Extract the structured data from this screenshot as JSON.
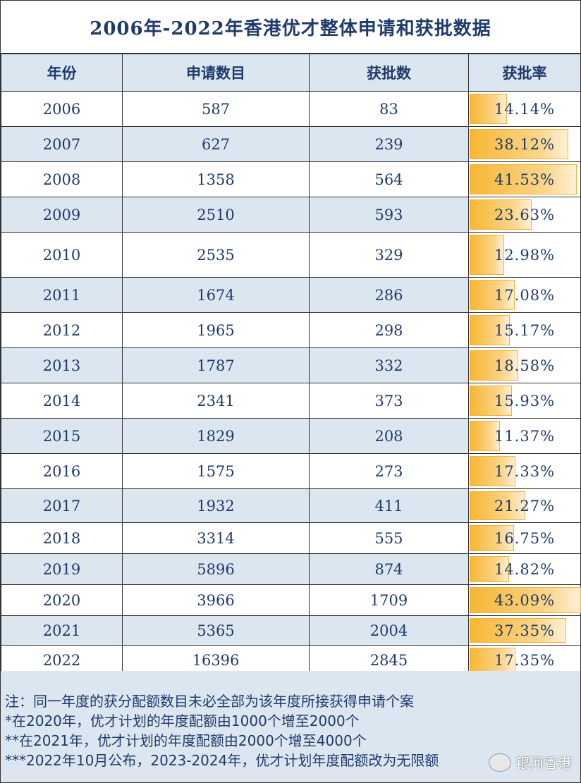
{
  "title": "2006年-2022年香港优才整体申请和获批数据",
  "headers": [
    "年份",
    "申请数目",
    "获批数",
    "获批率"
  ],
  "rows": [
    {
      "year": "2006",
      "apps": "587",
      "approved": "83",
      "rate": "14.14%",
      "rate_value": 14.14
    },
    {
      "year": "2007",
      "apps": "627",
      "approved": "239",
      "rate": "38.12%",
      "rate_value": 38.12
    },
    {
      "year": "2008",
      "apps": "1358",
      "approved": "564",
      "rate": "41.53%",
      "rate_value": 41.53
    },
    {
      "year": "2009",
      "apps": "2510",
      "approved": "593",
      "rate": "23.63%",
      "rate_value": 23.63
    },
    {
      "year": "2010",
      "apps": "2535",
      "approved": "329",
      "rate": "12.98%",
      "rate_value": 12.98
    },
    {
      "year": "2011",
      "apps": "1674",
      "approved": "286",
      "rate": "17.08%",
      "rate_value": 17.08
    },
    {
      "year": "2012",
      "apps": "1965",
      "approved": "298",
      "rate": "15.17%",
      "rate_value": 15.17
    },
    {
      "year": "2013",
      "apps": "1787",
      "approved": "332",
      "rate": "18.58%",
      "rate_value": 18.58
    },
    {
      "year": "2014",
      "apps": "2341",
      "approved": "373",
      "rate": "15.93%",
      "rate_value": 15.93
    },
    {
      "year": "2015",
      "apps": "1829",
      "approved": "208",
      "rate": "11.37%",
      "rate_value": 11.37
    },
    {
      "year": "2016",
      "apps": "1575",
      "approved": "273",
      "rate": "17.33%",
      "rate_value": 17.33
    },
    {
      "year": "2017",
      "apps": "1932",
      "approved": "411",
      "rate": "21.27%",
      "rate_value": 21.27
    },
    {
      "year": "2018",
      "apps": "3314",
      "approved": "555",
      "rate": "16.75%",
      "rate_value": 16.75
    },
    {
      "year": "2019",
      "apps": "5896",
      "approved": "874",
      "rate": "14.82%",
      "rate_value": 14.82
    },
    {
      "year": "2020",
      "apps": "3966",
      "approved": "1709",
      "rate": "43.09%",
      "rate_value": 43.09
    },
    {
      "year": "2021",
      "apps": "5365",
      "approved": "2004",
      "rate": "37.35%",
      "rate_value": 37.35
    },
    {
      "year": "2022",
      "apps": "16396",
      "approved": "2845",
      "rate": "17.35%",
      "rate_value": 17.35
    }
  ],
  "notes": [
    "注：同一年度的获分配额数目未必全部为该年度所接获得申请个案",
    "*在2020年，优才计划的年度配额由1000个增至2000个",
    "**在2021年，优才计划的年度配额由2000个增至4000个",
    "***2022年10月公布，2023-2024年，优才计划年度配额改为无限额"
  ],
  "watermark": "银河香港",
  "colors": {
    "text": "#1f3a6b",
    "header_bg": "#dce6f1",
    "bar": "#f6b733"
  }
}
